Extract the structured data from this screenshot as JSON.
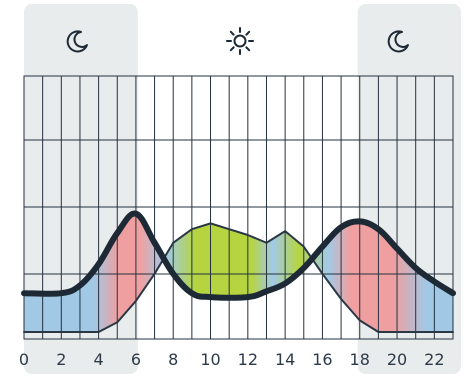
{
  "chart_data": {
    "type": "area",
    "x_ticks": [
      "0",
      "2",
      "4",
      "6",
      "8",
      "10",
      "12",
      "14",
      "16",
      "18",
      "20",
      "22"
    ],
    "xlim": [
      0,
      23
    ],
    "ylim": [
      0,
      10
    ],
    "grid": true,
    "night_bands": [
      [
        0,
        6
      ],
      [
        18,
        23
      ]
    ],
    "series": [
      {
        "values": [
          {
            "x": 0,
            "y": 2.0
          },
          {
            "x": 2,
            "y": 2.0
          },
          {
            "x": 3,
            "y": 2.4
          },
          {
            "x": 4,
            "y": 3.5
          },
          {
            "x": 5,
            "y": 5.1
          },
          {
            "x": 6,
            "y": 6.1
          },
          {
            "x": 7,
            "y": 4.6
          },
          {
            "x": 8,
            "y": 3.0
          },
          {
            "x": 9,
            "y": 2.0
          },
          {
            "x": 10,
            "y": 1.8
          },
          {
            "x": 12,
            "y": 1.8
          },
          {
            "x": 13,
            "y": 2.1
          },
          {
            "x": 14,
            "y": 2.5
          },
          {
            "x": 15,
            "y": 3.3
          },
          {
            "x": 16,
            "y": 4.4
          },
          {
            "x": 17,
            "y": 5.4
          },
          {
            "x": 18,
            "y": 5.7
          },
          {
            "x": 19,
            "y": 5.3
          },
          {
            "x": 20,
            "y": 4.3
          },
          {
            "x": 21,
            "y": 3.3
          },
          {
            "x": 22,
            "y": 2.6
          },
          {
            "x": 23,
            "y": 2.0
          }
        ]
      },
      {
        "values": [
          {
            "x": 0,
            "y": 0.0
          },
          {
            "x": 4,
            "y": 0.0
          },
          {
            "x": 5,
            "y": 0.5
          },
          {
            "x": 6,
            "y": 1.6
          },
          {
            "x": 7,
            "y": 3.0
          },
          {
            "x": 8,
            "y": 4.6
          },
          {
            "x": 9,
            "y": 5.3
          },
          {
            "x": 10,
            "y": 5.6
          },
          {
            "x": 11,
            "y": 5.3
          },
          {
            "x": 12,
            "y": 5.0
          },
          {
            "x": 13,
            "y": 4.6
          },
          {
            "x": 14,
            "y": 5.2
          },
          {
            "x": 15,
            "y": 4.4
          },
          {
            "x": 16,
            "y": 3.0
          },
          {
            "x": 17,
            "y": 1.7
          },
          {
            "x": 18,
            "y": 0.6
          },
          {
            "x": 19,
            "y": 0.0
          },
          {
            "x": 23,
            "y": 0.0
          }
        ]
      }
    ],
    "colors": {
      "band": "#e9ecec",
      "grid": "#24313f",
      "main_line": "#1d2a36",
      "thin_line": "#2a3846",
      "blue": "#9dc7e6",
      "red": "#ef9b9b",
      "green": "#b2d236",
      "text": "#2c3a4a"
    },
    "icons": {
      "left": "moon-icon",
      "center": "sun-icon",
      "right": "moon-icon"
    }
  }
}
